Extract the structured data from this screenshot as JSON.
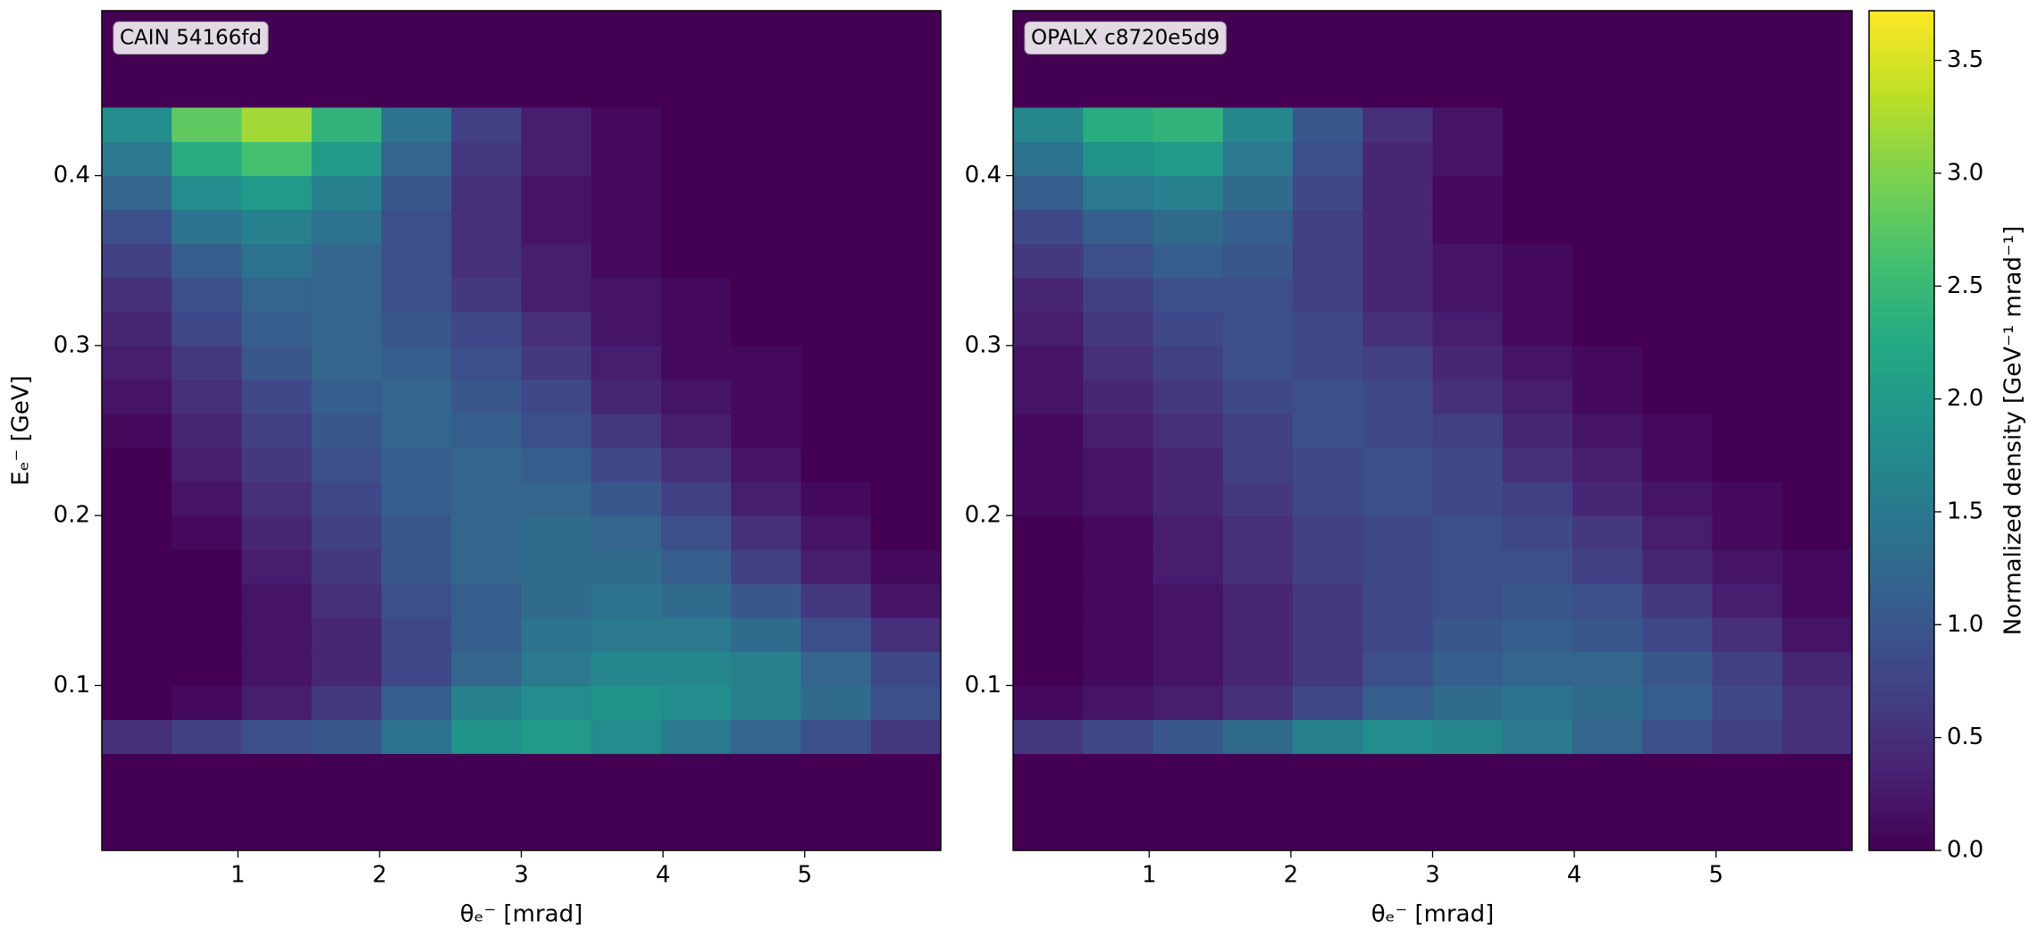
{
  "chart_data": [
    {
      "type": "heatmap",
      "label": "CAIN 54166fd",
      "xlabel": "θₑ⁻ [mrad]",
      "ylabel": "Eₑ⁻ [GeV]",
      "xlim": [
        0.04,
        5.96
      ],
      "ylim": [
        0.003,
        0.497
      ],
      "xticks": [
        1,
        2,
        3,
        4,
        5
      ],
      "yticks": [
        0.1,
        0.2,
        0.3,
        0.4
      ],
      "xbins": [
        0.04,
        0.533,
        1.027,
        1.52,
        2.013,
        2.507,
        3.0,
        3.493,
        3.987,
        4.48,
        4.973,
        5.467,
        5.96
      ],
      "ybins": [
        0.06,
        0.08,
        0.1,
        0.12,
        0.14,
        0.16,
        0.18,
        0.2,
        0.22,
        0.24,
        0.26,
        0.28,
        0.3,
        0.32,
        0.34,
        0.36,
        0.38,
        0.4,
        0.42,
        0.44
      ],
      "values": [
        [
          0.5,
          0.7,
          0.9,
          1.0,
          1.4,
          1.9,
          2.0,
          1.8,
          1.5,
          1.2,
          0.9,
          0.6
        ],
        [
          0,
          0.1,
          0.3,
          0.6,
          1.1,
          1.6,
          1.8,
          1.9,
          1.8,
          1.6,
          1.3,
          0.9
        ],
        [
          0,
          0,
          0.2,
          0.4,
          0.8,
          1.2,
          1.5,
          1.7,
          1.7,
          1.6,
          1.2,
          0.8
        ],
        [
          0,
          0,
          0.2,
          0.4,
          0.8,
          1.1,
          1.4,
          1.5,
          1.5,
          1.3,
          0.9,
          0.5
        ],
        [
          0,
          0,
          0.2,
          0.5,
          0.9,
          1.1,
          1.3,
          1.4,
          1.3,
          1.0,
          0.6,
          0.2
        ],
        [
          0,
          0,
          0.3,
          0.6,
          1.0,
          1.2,
          1.3,
          1.3,
          1.1,
          0.7,
          0.3,
          0.1
        ],
        [
          0,
          0.1,
          0.4,
          0.7,
          1.0,
          1.2,
          1.3,
          1.2,
          0.9,
          0.5,
          0.2,
          0
        ],
        [
          0,
          0.2,
          0.5,
          0.8,
          1.1,
          1.2,
          1.2,
          1.0,
          0.7,
          0.3,
          0.1,
          0
        ],
        [
          0,
          0.3,
          0.6,
          0.9,
          1.1,
          1.2,
          1.1,
          0.8,
          0.5,
          0.2,
          0,
          0
        ],
        [
          0.1,
          0.4,
          0.7,
          1.0,
          1.2,
          1.1,
          0.9,
          0.6,
          0.3,
          0.1,
          0,
          0
        ],
        [
          0.2,
          0.5,
          0.8,
          1.1,
          1.2,
          1.0,
          0.8,
          0.4,
          0.2,
          0.1,
          0,
          0
        ],
        [
          0.3,
          0.6,
          1.0,
          1.2,
          1.1,
          0.9,
          0.6,
          0.3,
          0.1,
          0.1,
          0,
          0
        ],
        [
          0.4,
          0.8,
          1.1,
          1.2,
          1.0,
          0.8,
          0.5,
          0.2,
          0.1,
          0,
          0,
          0
        ],
        [
          0.5,
          0.9,
          1.2,
          1.2,
          0.9,
          0.6,
          0.3,
          0.2,
          0.1,
          0,
          0,
          0
        ],
        [
          0.7,
          1.1,
          1.4,
          1.2,
          0.9,
          0.5,
          0.3,
          0.1,
          0,
          0,
          0,
          0
        ],
        [
          0.9,
          1.4,
          1.6,
          1.4,
          0.9,
          0.5,
          0.2,
          0.1,
          0,
          0,
          0,
          0
        ],
        [
          1.2,
          1.8,
          2.0,
          1.6,
          1.0,
          0.5,
          0.2,
          0.1,
          0,
          0,
          0,
          0
        ],
        [
          1.5,
          2.3,
          2.6,
          2.0,
          1.2,
          0.6,
          0.3,
          0.1,
          0,
          0,
          0,
          0
        ],
        [
          1.8,
          2.8,
          3.2,
          2.4,
          1.4,
          0.7,
          0.3,
          0.1,
          0,
          0,
          0,
          0
        ]
      ]
    },
    {
      "type": "heatmap",
      "label": "OPALX c8720e5d9",
      "xlabel": "θₑ⁻ [mrad]",
      "xlim": [
        0.04,
        5.96
      ],
      "ylim": [
        0.003,
        0.497
      ],
      "xticks": [
        1,
        2,
        3,
        4,
        5
      ],
      "yticks": [
        0.1,
        0.2,
        0.3,
        0.4
      ],
      "xbins": [
        0.04,
        0.533,
        1.027,
        1.52,
        2.013,
        2.507,
        3.0,
        3.493,
        3.987,
        4.48,
        4.973,
        5.467,
        5.96
      ],
      "ybins": [
        0.06,
        0.08,
        0.1,
        0.12,
        0.14,
        0.16,
        0.18,
        0.2,
        0.22,
        0.24,
        0.26,
        0.28,
        0.3,
        0.32,
        0.34,
        0.36,
        0.38,
        0.4,
        0.42,
        0.44
      ],
      "values": [
        [
          0.6,
          0.8,
          1.0,
          1.3,
          1.6,
          1.8,
          1.7,
          1.5,
          1.2,
          0.9,
          0.7,
          0.5
        ],
        [
          0.1,
          0.2,
          0.3,
          0.5,
          0.8,
          1.1,
          1.3,
          1.4,
          1.3,
          1.1,
          0.8,
          0.5
        ],
        [
          0,
          0.1,
          0.2,
          0.4,
          0.6,
          0.9,
          1.1,
          1.2,
          1.2,
          1.0,
          0.7,
          0.4
        ],
        [
          0,
          0.1,
          0.2,
          0.4,
          0.6,
          0.8,
          1.0,
          1.1,
          1.0,
          0.8,
          0.5,
          0.2
        ],
        [
          0,
          0.1,
          0.2,
          0.4,
          0.6,
          0.8,
          0.9,
          1.0,
          0.9,
          0.6,
          0.3,
          0.1
        ],
        [
          0,
          0.1,
          0.3,
          0.5,
          0.7,
          0.8,
          0.9,
          0.9,
          0.7,
          0.4,
          0.2,
          0.1
        ],
        [
          0,
          0.1,
          0.3,
          0.5,
          0.7,
          0.8,
          0.9,
          0.8,
          0.6,
          0.3,
          0.1,
          0
        ],
        [
          0.1,
          0.2,
          0.4,
          0.6,
          0.8,
          0.9,
          0.8,
          0.7,
          0.4,
          0.2,
          0.1,
          0
        ],
        [
          0.1,
          0.2,
          0.4,
          0.7,
          0.8,
          0.9,
          0.8,
          0.5,
          0.3,
          0.1,
          0,
          0
        ],
        [
          0.1,
          0.3,
          0.5,
          0.7,
          0.9,
          0.8,
          0.7,
          0.4,
          0.2,
          0.1,
          0,
          0
        ],
        [
          0.2,
          0.4,
          0.6,
          0.8,
          0.9,
          0.8,
          0.5,
          0.3,
          0.1,
          0,
          0,
          0
        ],
        [
          0.2,
          0.5,
          0.7,
          0.9,
          0.8,
          0.7,
          0.4,
          0.2,
          0.1,
          0,
          0,
          0
        ],
        [
          0.3,
          0.6,
          0.8,
          0.9,
          0.8,
          0.5,
          0.3,
          0.1,
          0,
          0,
          0,
          0
        ],
        [
          0.4,
          0.7,
          0.9,
          0.9,
          0.7,
          0.4,
          0.2,
          0.1,
          0,
          0,
          0,
          0
        ],
        [
          0.6,
          0.9,
          1.1,
          1.0,
          0.7,
          0.4,
          0.2,
          0.1,
          0,
          0,
          0,
          0
        ],
        [
          0.8,
          1.1,
          1.3,
          1.1,
          0.7,
          0.4,
          0.1,
          0,
          0,
          0,
          0,
          0
        ],
        [
          1.1,
          1.5,
          1.6,
          1.3,
          0.8,
          0.4,
          0.1,
          0,
          0,
          0,
          0,
          0
        ],
        [
          1.4,
          1.9,
          2.0,
          1.5,
          0.9,
          0.4,
          0.2,
          0,
          0,
          0,
          0,
          0
        ],
        [
          1.7,
          2.3,
          2.4,
          1.7,
          1.0,
          0.5,
          0.2,
          0,
          0,
          0,
          0,
          0
        ]
      ]
    }
  ],
  "colorbar": {
    "label": "Normalized density [GeV⁻¹ mrad⁻¹]",
    "colormap": "viridis",
    "lim": [
      0,
      3.72
    ],
    "ticks": [
      {
        "value": 0,
        "label": "0.0"
      },
      {
        "value": 0.5,
        "label": "0.5"
      },
      {
        "value": 1,
        "label": "1.0"
      },
      {
        "value": 1.5,
        "label": "1.5"
      },
      {
        "value": 2,
        "label": "2.0"
      },
      {
        "value": 2.5,
        "label": "2.5"
      },
      {
        "value": 3,
        "label": "3.0"
      },
      {
        "value": 3.5,
        "label": "3.5"
      }
    ]
  }
}
